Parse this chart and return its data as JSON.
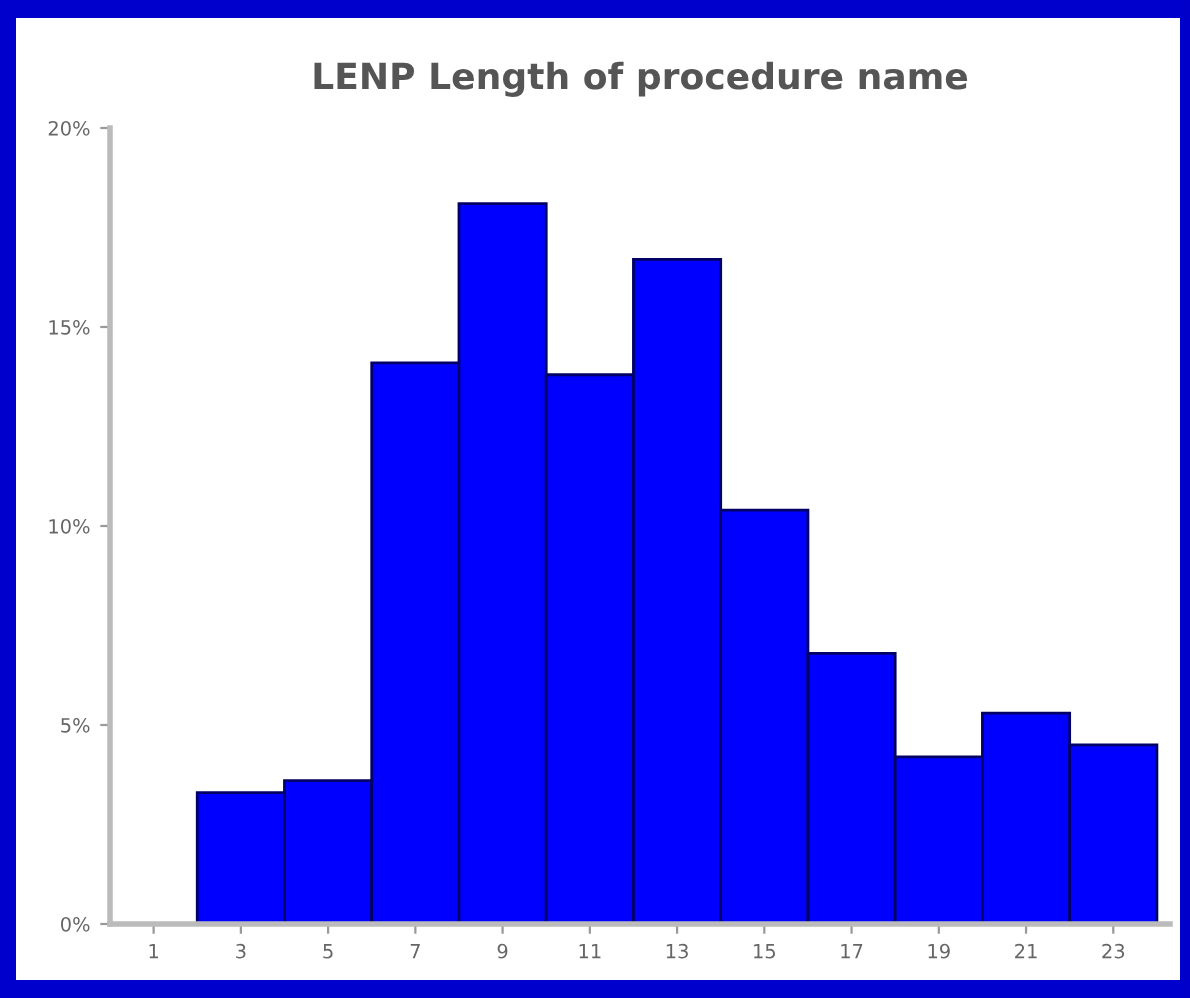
{
  "chart_data": {
    "type": "histogram",
    "title": "LENP Length of procedure name",
    "bins": [
      2,
      4,
      6,
      8,
      10,
      12,
      14,
      16,
      18,
      20,
      22,
      24
    ],
    "values": [
      3.3,
      3.6,
      14.1,
      18.1,
      13.8,
      16.7,
      10.4,
      6.8,
      4.2,
      5.3,
      4.5
    ],
    "color": "#0000ff",
    "xlim": [
      0,
      24.3
    ],
    "xticks": [
      1,
      3,
      5,
      7,
      9,
      11,
      13,
      15,
      17,
      19,
      21,
      23
    ],
    "ylim": [
      0,
      20
    ],
    "yticks": [
      {
        "value": 0,
        "label": "0%"
      },
      {
        "value": 5,
        "label": "5%"
      },
      {
        "value": 10,
        "label": "10%"
      },
      {
        "value": 15,
        "label": "15%"
      },
      {
        "value": 20,
        "label": "20%"
      }
    ]
  }
}
